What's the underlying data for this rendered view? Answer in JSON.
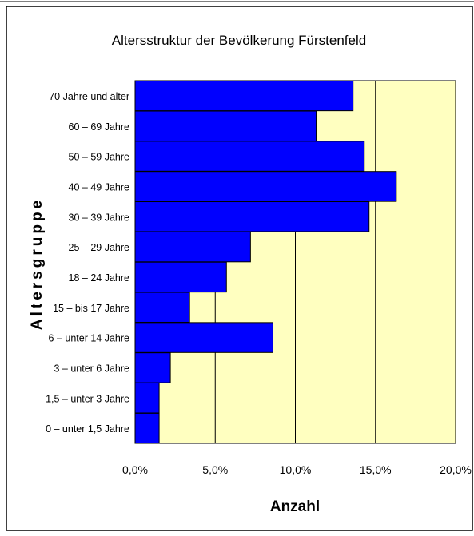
{
  "chart_data": {
    "type": "bar",
    "orientation": "horizontal",
    "title": "Altersstruktur der Bevölkerung Fürstenfeld",
    "xlabel": "Anzahl",
    "ylabel": "Altersgruppe",
    "xlim": [
      0,
      20
    ],
    "x_ticks": [
      "0,0%",
      "5,0%",
      "10,0%",
      "15,0%",
      "20,0%"
    ],
    "grid": "vertical",
    "legend": "none",
    "colors": {
      "bar": "#0000ff",
      "plot_background": "#ffffc0",
      "bar_edge": "#000000"
    },
    "categories": [
      "70 Jahre und älter",
      "60 – 69 Jahre",
      "50 – 59 Jahre",
      "40 – 49 Jahre",
      "30 – 39 Jahre",
      "25 – 29 Jahre",
      "18 – 24 Jahre",
      "15 – bis 17 Jahre",
      "6 – unter 14 Jahre",
      "3 – unter 6 Jahre",
      "1,5 – unter 3 Jahre",
      "0 – unter 1,5 Jahre"
    ],
    "values": [
      13.6,
      11.3,
      14.3,
      16.3,
      14.6,
      7.2,
      5.7,
      3.4,
      8.6,
      2.2,
      1.5,
      1.5
    ]
  }
}
